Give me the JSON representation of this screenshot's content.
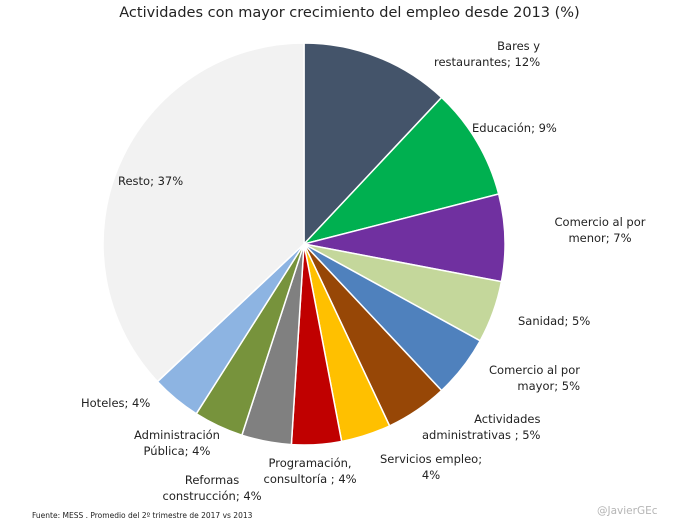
{
  "chart_data": {
    "type": "pie",
    "title": "Actividades con mayor crecimiento del empleo desde 2013 (%)",
    "slices": [
      {
        "label": [
          "Bares y",
          "restaurantes; 12%"
        ],
        "value": 12,
        "color": "#44546a"
      },
      {
        "label": [
          "Educación; 9%"
        ],
        "value": 9,
        "color": "#00b050"
      },
      {
        "label": [
          "Comercio al por",
          "menor; 7%"
        ],
        "value": 7,
        "color": "#7030a0"
      },
      {
        "label": [
          "Sanidad; 5%"
        ],
        "value": 5,
        "color": "#c4d79b"
      },
      {
        "label": [
          "Comercio al por",
          "mayor; 5%"
        ],
        "value": 5,
        "color": "#4f81bd"
      },
      {
        "label": [
          "Actividades",
          "administrativas ; 5%"
        ],
        "value": 5,
        "color": "#974706"
      },
      {
        "label": [
          "Servicios empleo;",
          "4%"
        ],
        "value": 4,
        "color": "#ffc000"
      },
      {
        "label": [
          "Programación,",
          "consultoría ; 4%"
        ],
        "value": 4,
        "color": "#c00000"
      },
      {
        "label": [
          "Reformas",
          "construcción; 4%"
        ],
        "value": 4,
        "color": "#808080"
      },
      {
        "label": [
          "Administración",
          "Pública; 4%"
        ],
        "value": 4,
        "color": "#77933c"
      },
      {
        "label": [
          "Hoteles; 4%"
        ],
        "value": 4,
        "color": "#8db4e2"
      },
      {
        "label": [
          "Resto; 37%"
        ],
        "value": 37,
        "color": "#f2f2f2"
      }
    ]
  },
  "footer": {
    "source": "Fuente: MESS . Promedio del 2º trimestre de 2017 vs 2013",
    "author": "@JavierGEc"
  }
}
